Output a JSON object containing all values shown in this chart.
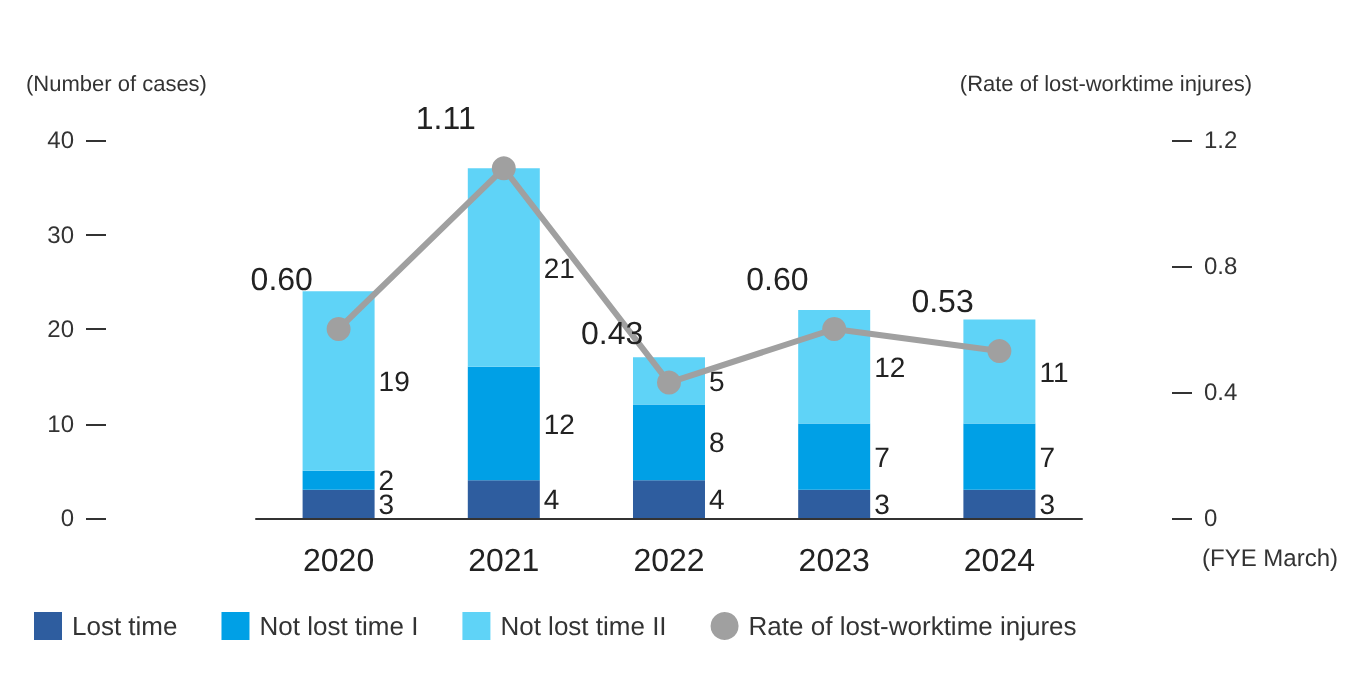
{
  "chart_data": {
    "type": "bar",
    "stacked": true,
    "categories": [
      "2020",
      "2021",
      "2022",
      "2023",
      "2024"
    ],
    "xlabel": "(FYE March)",
    "ylabel": "(Number of cases)",
    "y2label": "(Rate of lost-worktime injures)",
    "ylim": [
      0,
      40
    ],
    "yticks": [
      0,
      10,
      20,
      30,
      40
    ],
    "y2lim": [
      0,
      1.2
    ],
    "y2ticks": [
      0,
      0.4,
      0.8,
      1.2
    ],
    "data_labels": true,
    "legend": "bottom left",
    "grid": false,
    "series": [
      {
        "name": "Lost time",
        "color": "#2e5d9f",
        "values": [
          3,
          4,
          4,
          3,
          3
        ]
      },
      {
        "name": "Not lost time I",
        "color": "#00a0e6",
        "values": [
          2,
          12,
          8,
          7,
          7
        ]
      },
      {
        "name": "Not lost time II",
        "color": "#5fd3f7",
        "values": [
          19,
          21,
          5,
          12,
          11
        ]
      },
      {
        "name": "Rate of lost-worktime injures",
        "type": "line",
        "axis": "y2",
        "marker": "circle",
        "color": "#a0a0a0",
        "values": [
          0.6,
          1.11,
          0.43,
          0.6,
          0.53
        ],
        "value_labels": [
          "0.60",
          "1.11",
          "0.43",
          "0.60",
          "0.53"
        ]
      }
    ]
  }
}
